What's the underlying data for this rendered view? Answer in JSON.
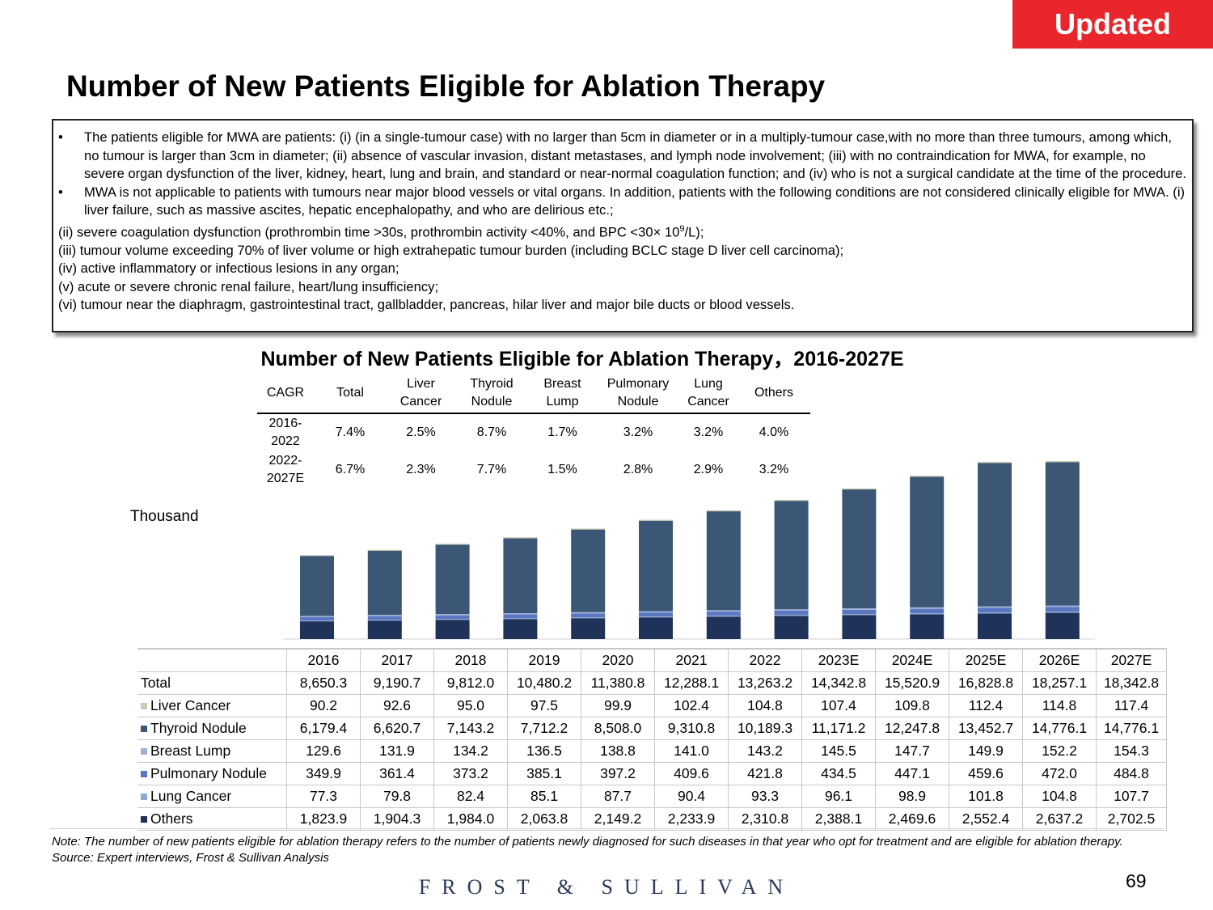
{
  "badge": "Updated",
  "page_title": "Number of New Patients Eligible for Ablation Therapy",
  "notes": {
    "bullet1": "The patients eligible for MWA are patients: (i) (in a single-tumour case) with no larger than 5cm in diameter or in a multiply-tumour case,with no more than three tumours, among which, no tumour is larger than 3cm in diameter; (ii) absence of vascular invasion, distant metastases, and lymph node involvement; (iii) with no contraindication for MWA, for example, no severe organ dysfunction of the liver, kidney, heart, lung and brain, and standard or near-normal coagulation function; and (iv) who is not a surgical candidate at the time of the procedure.",
    "bullet2": "MWA is not applicable to patients with tumours near major blood vessels or vital organs. In addition, patients with the following conditions are not considered clinically eligible for MWA.   (i)  liver failure, such as massive ascites, hepatic encephalopathy, and who are delirious  etc.;",
    "line_ii_a": "(ii)  severe coagulation dysfunction (prothrombin time >30s, prothrombin activity <40%, and BPC <30× 10",
    "line_ii_sup": "9",
    "line_ii_b": "/L);",
    "line_iii": "(iii) tumour volume exceeding 70% of liver volume or high extrahepatic tumour burden (including BCLC stage D liver cell carcinoma);",
    "line_iv": "(iv) active inflammatory or infectious lesions in any organ;",
    "line_v": "(v) acute or severe chronic renal failure, heart/lung insufficiency;",
    "line_vi": "(vi) tumour near the diaphragm, gastrointestinal tract, gallbladder, pancreas, hilar liver and major bile ducts or blood vessels."
  },
  "cagr_table": {
    "headers": {
      "cagr": "CAGR",
      "total": "Total",
      "liver_1": "Liver",
      "liver_2": "Cancer",
      "thyroid_1": "Thyroid",
      "thyroid_2": "Nodule",
      "breast_1": "Breast",
      "breast_2": "Lump",
      "pulmonary_1": "Pulmonary",
      "pulmonary_2": "Nodule",
      "lung_1": "Lung",
      "lung_2": "Cancer",
      "others": "Others"
    },
    "rows": [
      {
        "period_1": "2016-",
        "period_2": "2022",
        "values": [
          "7.4%",
          "2.5%",
          "8.7%",
          "1.7%",
          "3.2%",
          "3.2%",
          "4.0%"
        ]
      },
      {
        "period_1": "2022-",
        "period_2": "2027E",
        "values": [
          "6.7%",
          "2.3%",
          "7.7%",
          "1.5%",
          "2.8%",
          "2.9%",
          "3.2%"
        ]
      }
    ]
  },
  "chart_data": {
    "type": "bar",
    "stacked": true,
    "title": "Number of New Patients Eligible for Ablation Therapy，2016-2027E",
    "ylabel": "Thousand",
    "xlabel": "",
    "categories": [
      "2016",
      "2017",
      "2018",
      "2019",
      "2020",
      "2021",
      "2022",
      "2023E",
      "2024E",
      "2025E",
      "2026E",
      "2027E"
    ],
    "totals_label": "Total",
    "totals": [
      "8,650.3",
      "9,190.7",
      "9,812.0",
      "10,480.2",
      "11,380.8",
      "12,288.1",
      "13,263.2",
      "14,342.8",
      "15,520.9",
      "16,828.8",
      "18,257.1",
      "18,342.8"
    ],
    "series": [
      {
        "name": "Liver Cancer",
        "color": "#c9cbb3",
        "values": [
          90.2,
          92.6,
          95.0,
          97.5,
          99.9,
          102.4,
          104.8,
          107.4,
          109.8,
          112.4,
          114.8,
          117.4
        ],
        "labels": [
          "90.2",
          "92.6",
          "95.0",
          "97.5",
          "99.9",
          "102.4",
          "104.8",
          "107.4",
          "109.8",
          "112.4",
          "114.8",
          "117.4"
        ]
      },
      {
        "name": "Thyroid Nodule",
        "color": "#3c5675",
        "values": [
          6179.4,
          6620.7,
          7143.2,
          7712.2,
          8508.0,
          9310.8,
          10189.3,
          11171.2,
          12247.8,
          13452.7,
          14776.1,
          14776.1
        ],
        "labels": [
          "6,179.4",
          "6,620.7",
          "7,143.2",
          "7,712.2",
          "8,508.0",
          "9,310.8",
          "10,189.3",
          "11,171.2",
          "12,247.8",
          "13,452.7",
          "14,776.1",
          "14,776.1"
        ]
      },
      {
        "name": "Breast Lump",
        "color": "#9db0d6",
        "values": [
          129.6,
          131.9,
          134.2,
          136.5,
          138.8,
          141.0,
          143.2,
          145.5,
          147.7,
          149.9,
          152.2,
          154.3
        ],
        "labels": [
          "129.6",
          "131.9",
          "134.2",
          "136.5",
          "138.8",
          "141.0",
          "143.2",
          "145.5",
          "147.7",
          "149.9",
          "152.2",
          "154.3"
        ]
      },
      {
        "name": "Pulmonary Nodule",
        "color": "#5a78c2",
        "values": [
          349.9,
          361.4,
          373.2,
          385.1,
          397.2,
          409.6,
          421.8,
          434.5,
          447.1,
          459.6,
          472.0,
          484.8
        ],
        "labels": [
          "349.9",
          "361.4",
          "373.2",
          "385.1",
          "397.2",
          "409.6",
          "421.8",
          "434.5",
          "447.1",
          "459.6",
          "472.0",
          "484.8"
        ]
      },
      {
        "name": "Lung Cancer",
        "color": "#8fa9d4",
        "values": [
          77.3,
          79.8,
          82.4,
          85.1,
          87.7,
          90.4,
          93.3,
          96.1,
          98.9,
          101.8,
          104.8,
          107.7
        ],
        "labels": [
          "77.3",
          "79.8",
          "82.4",
          "85.1",
          "87.7",
          "90.4",
          "93.3",
          "96.1",
          "98.9",
          "101.8",
          "104.8",
          "107.7"
        ]
      },
      {
        "name": "Others",
        "color": "#1f325a",
        "values": [
          1823.9,
          1904.3,
          1984.0,
          2063.8,
          2149.2,
          2233.9,
          2310.8,
          2388.1,
          2469.6,
          2552.4,
          2637.2,
          2702.5
        ],
        "labels": [
          "1,823.9",
          "1,904.3",
          "1,984.0",
          "2,063.8",
          "2,149.2",
          "2,233.9",
          "2,310.8",
          "2,388.1",
          "2,469.6",
          "2,552.4",
          "2,637.2",
          "2,702.5"
        ]
      }
    ],
    "ylim": [
      0,
      18500
    ]
  },
  "footnote": "Note: The number of new patients eligible for ablation therapy refers to the number of patients newly diagnosed for such diseases in that year who opt for treatment and are eligible for ablation therapy.  Source: Expert interviews, Frost & Sullivan Analysis",
  "brand": "FROST & SULLIVAN",
  "page_number": "69"
}
